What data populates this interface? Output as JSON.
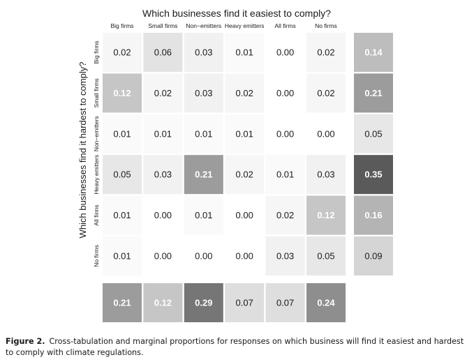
{
  "chart_data": {
    "type": "heatmap",
    "title": "Which businesses find it easiest to comply?",
    "xlabel": "",
    "ylabel": "Which businesses find it hardest to comply?",
    "x_categories": [
      "Big firms",
      "Small firms",
      "Non−emitters",
      "Heavy emitters",
      "All firms",
      "No firms"
    ],
    "y_categories": [
      "Big firms",
      "Small firms",
      "Non−emitters",
      "Heavy emitters",
      "All firms",
      "No firms"
    ],
    "values": [
      [
        "0.02",
        "0.06",
        "0.03",
        "0.01",
        "0.00",
        "0.02"
      ],
      [
        "0.12",
        "0.02",
        "0.03",
        "0.02",
        "0.00",
        "0.02"
      ],
      [
        "0.01",
        "0.01",
        "0.01",
        "0.01",
        "0.00",
        "0.00"
      ],
      [
        "0.05",
        "0.03",
        "0.21",
        "0.02",
        "0.01",
        "0.03"
      ],
      [
        "0.01",
        "0.00",
        "0.01",
        "0.00",
        "0.02",
        "0.12"
      ],
      [
        "0.01",
        "0.00",
        "0.00",
        "0.00",
        "0.03",
        "0.05"
      ]
    ],
    "row_marginals": [
      "0.14",
      "0.21",
      "0.05",
      "0.35",
      "0.16",
      "0.09"
    ],
    "column_marginals": [
      "0.21",
      "0.12",
      "0.29",
      "0.07",
      "0.07",
      "0.24"
    ],
    "color_scale": {
      "low": "#ffffff",
      "high": "#5a5a5a",
      "max_value": 0.35
    },
    "light_text_color": "#ffffff",
    "dark_text_color": "#1a1a1a"
  },
  "caption": {
    "label": "Figure 2.",
    "text": "Cross-tabulation and marginal proportions for responses on which business will find it easiest and hardest to comply with climate regulations."
  }
}
